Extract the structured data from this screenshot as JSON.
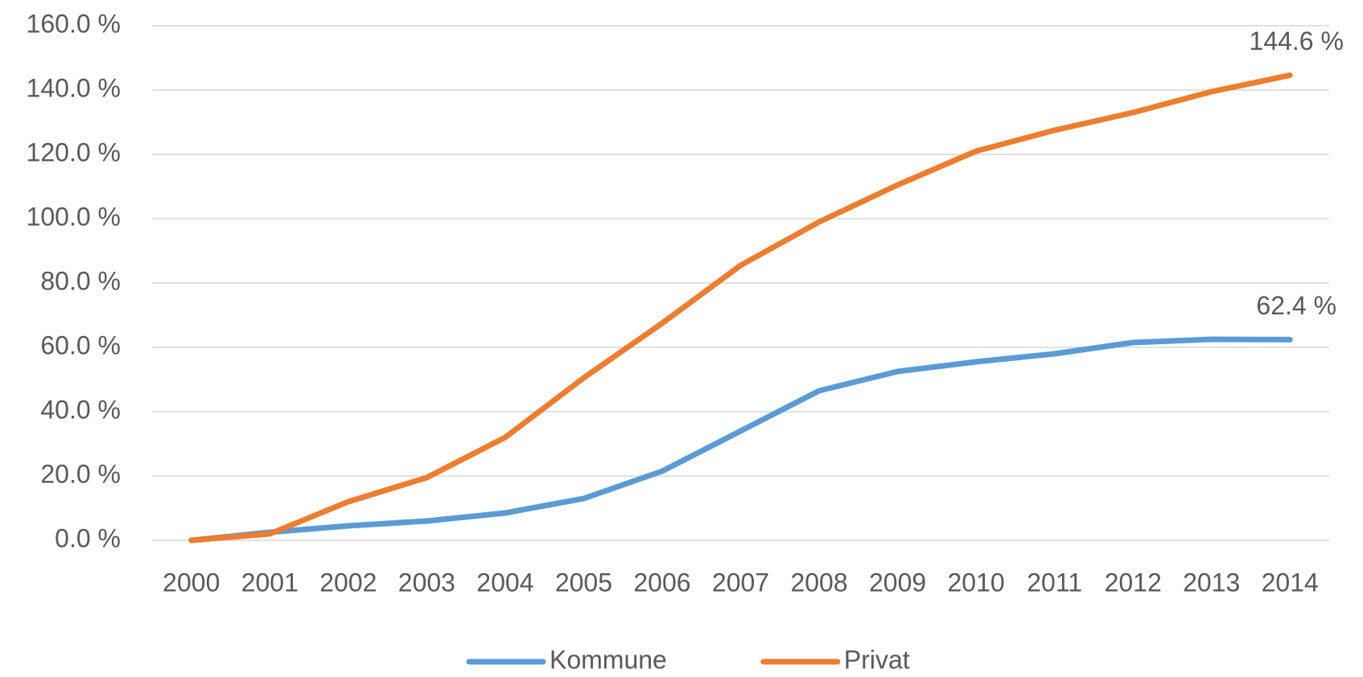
{
  "chart_data": {
    "type": "line",
    "categories": [
      "2000",
      "2001",
      "2002",
      "2003",
      "2004",
      "2005",
      "2006",
      "2007",
      "2008",
      "2009",
      "2010",
      "2011",
      "2012",
      "2013",
      "2014"
    ],
    "series": [
      {
        "name": "Kommune",
        "color": "#5b9bd5",
        "values": [
          0,
          2.5,
          4.5,
          6,
          8.5,
          13,
          21.5,
          34,
          46.5,
          52.5,
          55.5,
          58,
          61.5,
          62.5,
          62.4
        ],
        "value_labels": [
          null,
          null,
          null,
          null,
          null,
          null,
          null,
          null,
          null,
          null,
          null,
          null,
          null,
          null,
          "62.4 %"
        ]
      },
      {
        "name": "Privat",
        "color": "#ed7d31",
        "values": [
          0,
          2,
          12,
          19.5,
          32,
          50.5,
          67.5,
          85.5,
          99,
          110.5,
          121,
          127.5,
          133,
          139.5,
          144.6
        ],
        "value_labels": [
          null,
          null,
          null,
          null,
          null,
          null,
          null,
          null,
          null,
          null,
          null,
          null,
          null,
          null,
          "144.6 %"
        ]
      }
    ],
    "ylim": [
      0,
      160
    ],
    "yticks": [
      {
        "value": 0,
        "label": "0.0 %"
      },
      {
        "value": 20,
        "label": "20.0 %"
      },
      {
        "value": 40,
        "label": "40.0 %"
      },
      {
        "value": 60,
        "label": "60.0 %"
      },
      {
        "value": 80,
        "label": "80.0 %"
      },
      {
        "value": 100,
        "label": "100.0 %"
      },
      {
        "value": 120,
        "label": "120.0 %"
      },
      {
        "value": 140,
        "label": "140.0 %"
      },
      {
        "value": 160,
        "label": "160.0 %"
      }
    ],
    "grid": true,
    "legend": "bottom"
  }
}
